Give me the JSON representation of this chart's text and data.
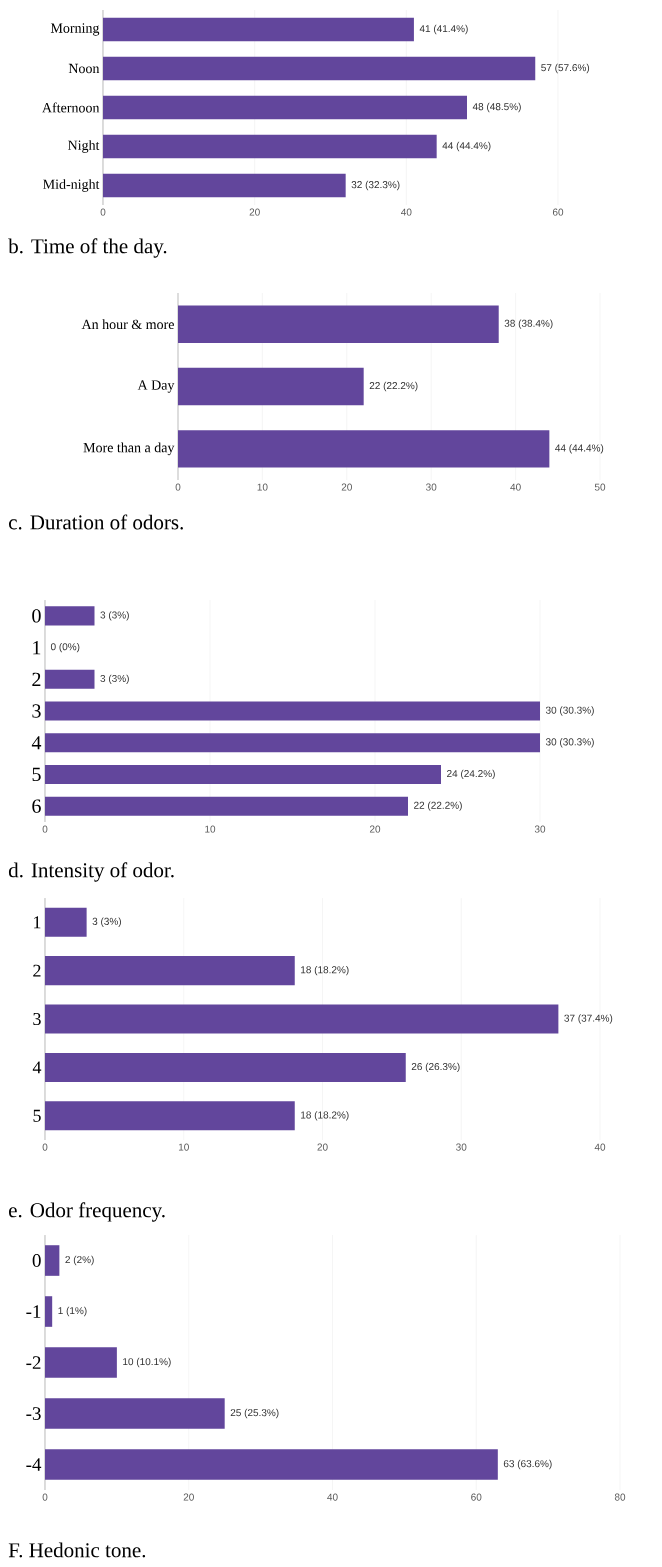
{
  "chart_data": [
    {
      "type": "bar",
      "orientation": "horizontal",
      "title": "b. Time of the day.",
      "categories": [
        "Morning",
        "Noon",
        "Afternoon",
        "Night",
        "Mid-night"
      ],
      "values": [
        41,
        57,
        48,
        44,
        32
      ],
      "value_labels": [
        "41 (41.4%)",
        "57 (57.6%)",
        "48 (48.5%)",
        "44 (44.4%)",
        "32 (32.3%)"
      ],
      "color": "#62469c",
      "xlim": [
        0,
        60
      ],
      "xticks": [
        0,
        20,
        40,
        60
      ],
      "grid": "x"
    },
    {
      "type": "bar",
      "orientation": "horizontal",
      "title": "c. Duration of odors.",
      "categories": [
        "An hour & more",
        "A Day",
        "More than a day"
      ],
      "values": [
        38,
        22,
        44
      ],
      "value_labels": [
        "38 (38.4%)",
        "22 (22.2%)",
        "44 (44.4%)"
      ],
      "color": "#62469c",
      "xlim": [
        0,
        50
      ],
      "xticks": [
        0,
        10,
        20,
        30,
        40,
        50
      ],
      "grid": "x"
    },
    {
      "type": "bar",
      "orientation": "horizontal",
      "title": "d. Intensity of odor.",
      "categories": [
        "0",
        "1",
        "2",
        "3",
        "4",
        "5",
        "6"
      ],
      "values": [
        3,
        0,
        3,
        30,
        30,
        24,
        22
      ],
      "value_labels": [
        "3 (3%)",
        "0 (0%)",
        "3 (3%)",
        "30 (30.3%)",
        "30 (30.3%)",
        "24 (24.2%)",
        "22 (22.2%)"
      ],
      "color": "#62469c",
      "xlim": [
        0,
        30
      ],
      "xticks": [
        0,
        10,
        20,
        30
      ],
      "grid": "x"
    },
    {
      "type": "bar",
      "orientation": "horizontal",
      "title": "e. Odor frequency.",
      "categories": [
        "1",
        "2",
        "3",
        "4",
        "5"
      ],
      "values": [
        3,
        18,
        37,
        26,
        18
      ],
      "value_labels": [
        "3 (3%)",
        "18 (18.2%)",
        "37 (37.4%)",
        "26 (26.3%)",
        "18 (18.2%)"
      ],
      "color": "#62469c",
      "xlim": [
        0,
        40
      ],
      "xticks": [
        0,
        10,
        20,
        30,
        40
      ],
      "grid": "x"
    },
    {
      "type": "bar",
      "orientation": "horizontal",
      "title": "F. Hedonic tone.",
      "categories": [
        "0",
        "-1",
        "-2",
        "-3",
        "-4"
      ],
      "values": [
        2,
        1,
        10,
        25,
        63
      ],
      "value_labels": [
        "2 (2%)",
        "1 (1%)",
        "10 (10.1%)",
        "25 (25.3%)",
        "63 (63.6%)"
      ],
      "color": "#62469c",
      "xlim": [
        0,
        80
      ],
      "xticks": [
        0,
        20,
        40,
        60,
        80
      ],
      "grid": "x"
    }
  ]
}
